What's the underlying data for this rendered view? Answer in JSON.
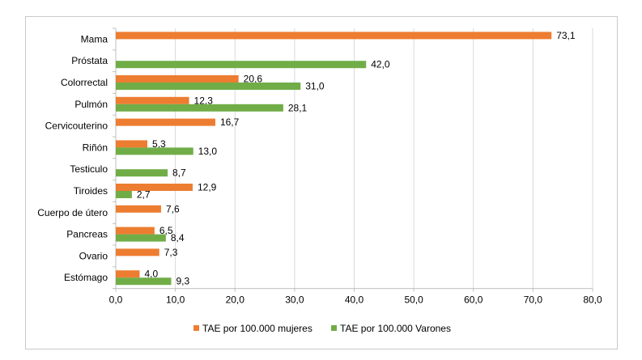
{
  "chart_data": {
    "type": "bar",
    "orientation": "horizontal",
    "title": "",
    "xlabel": "",
    "ylabel": "",
    "xlim": [
      0,
      80
    ],
    "x_ticks": [
      0,
      10,
      20,
      30,
      40,
      50,
      60,
      70,
      80
    ],
    "x_tick_labels": [
      "0,0",
      "10,0",
      "20,0",
      "30,0",
      "40,0",
      "50,0",
      "60,0",
      "70,0",
      "80,0"
    ],
    "grid": "vertical",
    "legend_position": "bottom",
    "categories": [
      "Mama",
      "Próstata",
      "Colorrectal",
      "Pulmón",
      "Cervicouterino",
      "Riñón",
      "Testiculo",
      "Tiroides",
      "Cuerpo de útero",
      "Pancreas",
      "Ovario",
      "Estómago"
    ],
    "series": [
      {
        "name": "TAE por 100.000 mujeres",
        "color": "#ED7D31",
        "values": [
          73.1,
          null,
          20.6,
          12.3,
          16.7,
          5.3,
          null,
          12.9,
          7.6,
          6.5,
          7.3,
          4.0
        ],
        "labels": [
          "73,1",
          null,
          "20,6",
          "12,3",
          "16,7",
          "5,3",
          null,
          "12,9",
          "7,6",
          "6,5",
          "7,3",
          "4,0"
        ]
      },
      {
        "name": "TAE por 100.000 Varones",
        "color": "#70AD47",
        "values": [
          null,
          42.0,
          31.0,
          28.1,
          null,
          13.0,
          8.7,
          2.7,
          null,
          8.4,
          null,
          9.3
        ],
        "labels": [
          null,
          "42,0",
          "31,0",
          "28,1",
          null,
          "13,0",
          "8,7",
          "2,7",
          null,
          "8,4",
          null,
          "9,3"
        ]
      }
    ]
  },
  "colors": {
    "grid": "#d9d9d9",
    "axis": "#bfbfbf"
  }
}
